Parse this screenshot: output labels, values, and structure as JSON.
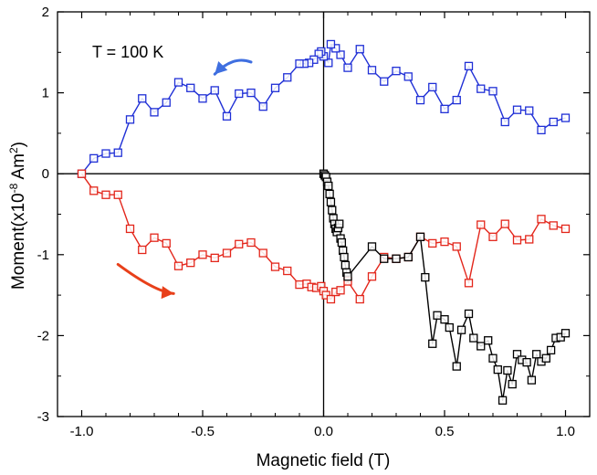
{
  "chart_data": {
    "type": "line",
    "title": "",
    "annotation": "T = 100 K",
    "xlabel": "Magnetic field (T)",
    "ylabel": "Moment(x10",
    "ylabel_exp": "-8",
    "ylabel_unit": " Am",
    "ylabel_unit_exp": "2",
    "ylabel_close": ")",
    "xlim": [
      -1.1,
      1.1
    ],
    "ylim": [
      -3,
      2
    ],
    "xticks": [
      -1.0,
      -0.5,
      0.0,
      0.5,
      1.0
    ],
    "xtick_labels": [
      "-1.0",
      "-0.5",
      "0.0",
      "0.5",
      "1.0"
    ],
    "yticks": [
      -3,
      -2,
      -1,
      0,
      1,
      2
    ],
    "ytick_labels": [
      "-3",
      "-2",
      "-1",
      "0",
      "1",
      "2"
    ],
    "marker": "square",
    "colors": {
      "upper": "#1f2fd6",
      "lower": "#e3261b",
      "virgin": "#000000",
      "arrow_upper": "#3f6fe0",
      "arrow_lower": "#e8401a"
    },
    "arrows": [
      {
        "series": "upper",
        "direction": "left",
        "from": [
          -0.3,
          1.38
        ],
        "to": [
          -0.45,
          1.23
        ]
      },
      {
        "series": "lower",
        "direction": "right",
        "from": [
          -0.85,
          -1.12
        ],
        "to": [
          -0.62,
          -1.48
        ]
      }
    ],
    "series": [
      {
        "name": "upper",
        "x": [
          1.0,
          0.95,
          0.9,
          0.85,
          0.8,
          0.75,
          0.7,
          0.65,
          0.6,
          0.55,
          0.5,
          0.45,
          0.4,
          0.35,
          0.3,
          0.25,
          0.2,
          0.15,
          0.1,
          0.07,
          0.05,
          0.03,
          0.02,
          0.0,
          -0.01,
          -0.02,
          -0.04,
          -0.06,
          -0.08,
          -0.1,
          -0.15,
          -0.2,
          -0.25,
          -0.3,
          -0.35,
          -0.4,
          -0.45,
          -0.5,
          -0.55,
          -0.6,
          -0.65,
          -0.7,
          -0.75,
          -0.8,
          -0.85,
          -0.9,
          -0.95,
          -1.0
        ],
        "y": [
          0.69,
          0.64,
          0.54,
          0.78,
          0.79,
          0.64,
          1.02,
          1.05,
          1.33,
          0.91,
          0.8,
          1.07,
          0.91,
          1.2,
          1.27,
          1.14,
          1.28,
          1.54,
          1.31,
          1.47,
          1.55,
          1.6,
          1.37,
          1.45,
          1.51,
          1.48,
          1.41,
          1.37,
          1.36,
          1.36,
          1.19,
          1.06,
          0.83,
          1.0,
          0.99,
          0.71,
          1.03,
          0.93,
          1.06,
          1.13,
          0.88,
          0.76,
          0.93,
          0.67,
          0.26,
          0.25,
          0.19,
          0.0
        ]
      },
      {
        "name": "lower",
        "x": [
          -1.0,
          -0.95,
          -0.9,
          -0.85,
          -0.8,
          -0.75,
          -0.7,
          -0.65,
          -0.6,
          -0.55,
          -0.5,
          -0.45,
          -0.4,
          -0.35,
          -0.3,
          -0.25,
          -0.2,
          -0.15,
          -0.1,
          -0.07,
          -0.05,
          -0.03,
          -0.01,
          0.0,
          0.01,
          0.03,
          0.05,
          0.07,
          0.1,
          0.15,
          0.2,
          0.25,
          0.3,
          0.35,
          0.4,
          0.45,
          0.5,
          0.55,
          0.6,
          0.65,
          0.7,
          0.75,
          0.8,
          0.85,
          0.9,
          0.95,
          1.0
        ],
        "y": [
          0.0,
          -0.21,
          -0.26,
          -0.26,
          -0.68,
          -0.94,
          -0.79,
          -0.86,
          -1.14,
          -1.1,
          -1.0,
          -1.04,
          -0.98,
          -0.87,
          -0.85,
          -0.98,
          -1.15,
          -1.2,
          -1.37,
          -1.36,
          -1.4,
          -1.41,
          -1.39,
          -1.45,
          -1.5,
          -1.55,
          -1.46,
          -1.44,
          -1.33,
          -1.55,
          -1.27,
          -1.03,
          -1.05,
          -1.03,
          -0.78,
          -0.86,
          -0.84,
          -0.9,
          -1.35,
          -0.63,
          -0.78,
          -0.62,
          -0.82,
          -0.81,
          -0.56,
          -0.64,
          -0.68
        ]
      },
      {
        "name": "virgin",
        "x": [
          0.0,
          0.005,
          0.01,
          0.015,
          0.02,
          0.025,
          0.03,
          0.035,
          0.04,
          0.045,
          0.05,
          0.055,
          0.06,
          0.065,
          0.07,
          0.075,
          0.08,
          0.085,
          0.09,
          0.095,
          0.1,
          0.2,
          0.25,
          0.3,
          0.35,
          0.4,
          0.42,
          0.45,
          0.47,
          0.5,
          0.52,
          0.55,
          0.57,
          0.6,
          0.62,
          0.65,
          0.68,
          0.7,
          0.72,
          0.74,
          0.76,
          0.78,
          0.8,
          0.82,
          0.84,
          0.86,
          0.88,
          0.9,
          0.92,
          0.94,
          0.96,
          0.98,
          1.0
        ],
        "y": [
          0.0,
          -0.02,
          -0.04,
          -0.1,
          -0.15,
          -0.25,
          -0.35,
          -0.45,
          -0.55,
          -0.62,
          -0.68,
          -0.72,
          -0.67,
          -0.62,
          -0.8,
          -0.85,
          -0.95,
          -1.03,
          -1.13,
          -1.22,
          -1.27,
          -0.9,
          -1.05,
          -1.05,
          -1.03,
          -0.78,
          -1.28,
          -2.1,
          -1.75,
          -1.8,
          -1.9,
          -2.38,
          -1.93,
          -1.73,
          -2.03,
          -2.13,
          -2.06,
          -2.28,
          -2.42,
          -2.8,
          -2.43,
          -2.6,
          -2.23,
          -2.3,
          -2.33,
          -2.55,
          -2.23,
          -2.32,
          -2.28,
          -2.18,
          -2.03,
          -2.02,
          -1.97
        ]
      }
    ]
  }
}
